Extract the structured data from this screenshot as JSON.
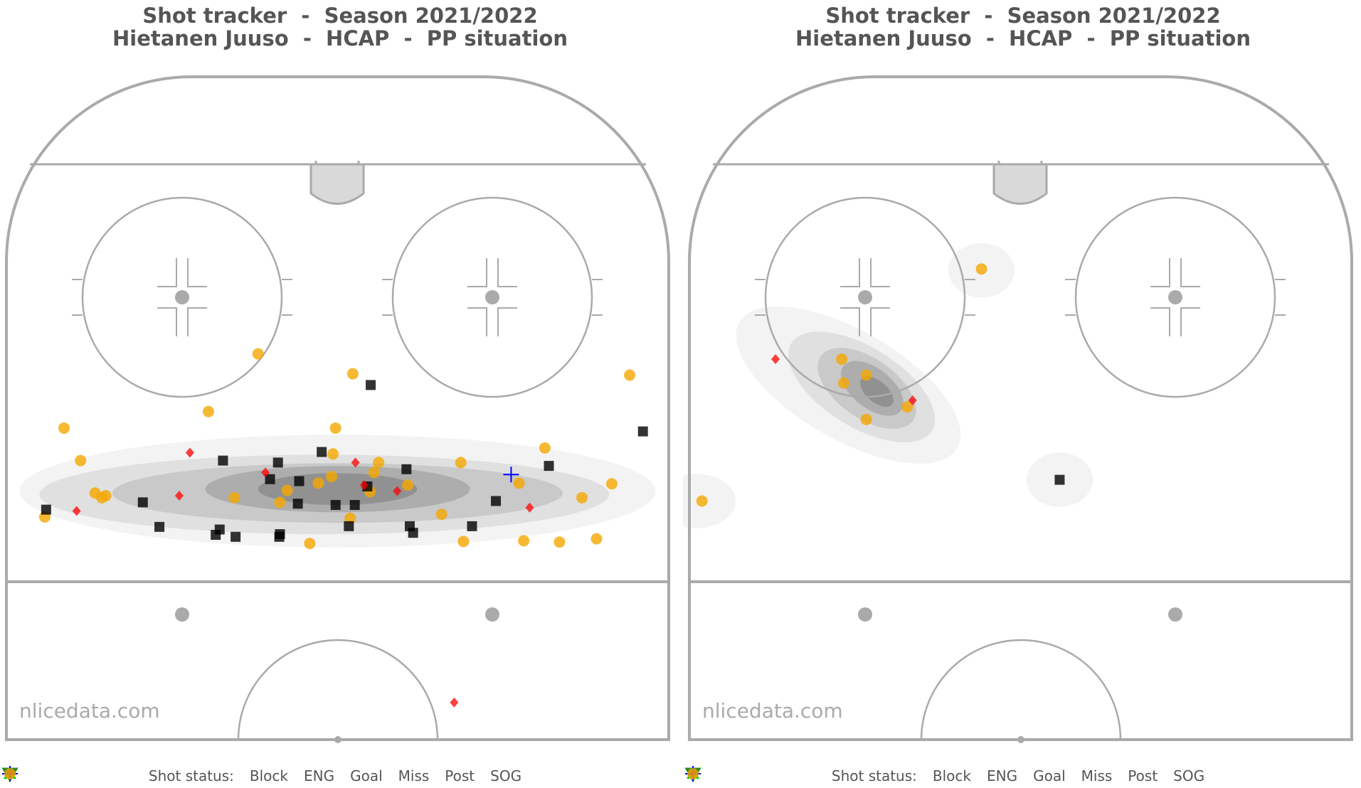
{
  "watermark": "nlicedata.com",
  "legend": {
    "label": "Shot status:",
    "items": [
      {
        "key": "block",
        "label": "Block",
        "color": "#000000",
        "marker": "square"
      },
      {
        "key": "eng",
        "label": "ENG",
        "color": "#228b22",
        "marker": "triangle-down-open"
      },
      {
        "key": "goal",
        "label": "Goal",
        "color": "#00cc00",
        "marker": "triangle-up"
      },
      {
        "key": "miss",
        "label": "Miss",
        "color": "#ff0000",
        "marker": "diamond"
      },
      {
        "key": "post",
        "label": "Post",
        "color": "#0000ff",
        "marker": "plus"
      },
      {
        "key": "sog",
        "label": "SOG",
        "color": "#f5a800",
        "marker": "circle"
      }
    ]
  },
  "chart_data": [
    {
      "type": "scatter",
      "title_line1": "Shot tracker  -  Season 2021/2022",
      "title_line2": "Hietanen Juuso  -  HCAP  -  PP situation",
      "density_overlay": true,
      "points": [
        {
          "x": 0.087,
          "y": 0.53,
          "s": "sog"
        },
        {
          "x": 0.112,
          "y": 0.579,
          "s": "sog"
        },
        {
          "x": 0.134,
          "y": 0.628,
          "s": "sog"
        },
        {
          "x": 0.144,
          "y": 0.635,
          "s": "sog"
        },
        {
          "x": 0.15,
          "y": 0.632,
          "s": "sog"
        },
        {
          "x": 0.058,
          "y": 0.664,
          "s": "sog"
        },
        {
          "x": 0.305,
          "y": 0.505,
          "s": "sog"
        },
        {
          "x": 0.38,
          "y": 0.418,
          "s": "sog"
        },
        {
          "x": 0.523,
          "y": 0.448,
          "s": "sog"
        },
        {
          "x": 0.497,
          "y": 0.53,
          "s": "sog"
        },
        {
          "x": 0.493,
          "y": 0.569,
          "s": "sog"
        },
        {
          "x": 0.491,
          "y": 0.603,
          "s": "sog"
        },
        {
          "x": 0.471,
          "y": 0.613,
          "s": "sog"
        },
        {
          "x": 0.424,
          "y": 0.624,
          "s": "sog"
        },
        {
          "x": 0.413,
          "y": 0.642,
          "s": "sog"
        },
        {
          "x": 0.344,
          "y": 0.635,
          "s": "sog"
        },
        {
          "x": 0.562,
          "y": 0.582,
          "s": "sog"
        },
        {
          "x": 0.555,
          "y": 0.597,
          "s": "sog"
        },
        {
          "x": 0.549,
          "y": 0.626,
          "s": "sog"
        },
        {
          "x": 0.606,
          "y": 0.616,
          "s": "sog"
        },
        {
          "x": 0.519,
          "y": 0.666,
          "s": "sog"
        },
        {
          "x": 0.458,
          "y": 0.704,
          "s": "sog"
        },
        {
          "x": 0.686,
          "y": 0.582,
          "s": "sog"
        },
        {
          "x": 0.657,
          "y": 0.66,
          "s": "sog"
        },
        {
          "x": 0.69,
          "y": 0.701,
          "s": "sog"
        },
        {
          "x": 0.774,
          "y": 0.613,
          "s": "sog"
        },
        {
          "x": 0.813,
          "y": 0.56,
          "s": "sog"
        },
        {
          "x": 0.781,
          "y": 0.7,
          "s": "sog"
        },
        {
          "x": 0.835,
          "y": 0.702,
          "s": "sog"
        },
        {
          "x": 0.869,
          "y": 0.635,
          "s": "sog"
        },
        {
          "x": 0.891,
          "y": 0.697,
          "s": "sog"
        },
        {
          "x": 0.914,
          "y": 0.614,
          "s": "sog"
        },
        {
          "x": 0.941,
          "y": 0.45,
          "s": "sog"
        },
        {
          "x": 0.55,
          "y": 0.465,
          "s": "block"
        },
        {
          "x": 0.961,
          "y": 0.535,
          "s": "block"
        },
        {
          "x": 0.327,
          "y": 0.579,
          "s": "block"
        },
        {
          "x": 0.41,
          "y": 0.582,
          "s": "block"
        },
        {
          "x": 0.476,
          "y": 0.566,
          "s": "block"
        },
        {
          "x": 0.398,
          "y": 0.607,
          "s": "block"
        },
        {
          "x": 0.442,
          "y": 0.61,
          "s": "block"
        },
        {
          "x": 0.604,
          "y": 0.592,
          "s": "block"
        },
        {
          "x": 0.819,
          "y": 0.587,
          "s": "block"
        },
        {
          "x": 0.545,
          "y": 0.618,
          "s": "block"
        },
        {
          "x": 0.739,
          "y": 0.64,
          "s": "block"
        },
        {
          "x": 0.206,
          "y": 0.642,
          "s": "block"
        },
        {
          "x": 0.44,
          "y": 0.644,
          "s": "block"
        },
        {
          "x": 0.497,
          "y": 0.646,
          "s": "block"
        },
        {
          "x": 0.526,
          "y": 0.646,
          "s": "block"
        },
        {
          "x": 0.06,
          "y": 0.653,
          "s": "block"
        },
        {
          "x": 0.231,
          "y": 0.679,
          "s": "block"
        },
        {
          "x": 0.316,
          "y": 0.691,
          "s": "block"
        },
        {
          "x": 0.413,
          "y": 0.69,
          "s": "block"
        },
        {
          "x": 0.517,
          "y": 0.678,
          "s": "block"
        },
        {
          "x": 0.609,
          "y": 0.678,
          "s": "block"
        },
        {
          "x": 0.614,
          "y": 0.688,
          "s": "block"
        },
        {
          "x": 0.703,
          "y": 0.678,
          "s": "block"
        },
        {
          "x": 0.346,
          "y": 0.694,
          "s": "block"
        },
        {
          "x": 0.412,
          "y": 0.694,
          "s": "block"
        },
        {
          "x": 0.322,
          "y": 0.683,
          "s": "block"
        },
        {
          "x": 0.277,
          "y": 0.567,
          "s": "miss"
        },
        {
          "x": 0.391,
          "y": 0.597,
          "s": "miss"
        },
        {
          "x": 0.527,
          "y": 0.582,
          "s": "miss"
        },
        {
          "x": 0.54,
          "y": 0.616,
          "s": "miss"
        },
        {
          "x": 0.59,
          "y": 0.625,
          "s": "miss"
        },
        {
          "x": 0.261,
          "y": 0.632,
          "s": "miss"
        },
        {
          "x": 0.106,
          "y": 0.655,
          "s": "miss"
        },
        {
          "x": 0.79,
          "y": 0.65,
          "s": "miss"
        },
        {
          "x": 0.676,
          "y": 0.944,
          "s": "miss"
        },
        {
          "x": 0.762,
          "y": 0.6,
          "s": "post"
        }
      ],
      "density": [
        {
          "cx": 0.5,
          "cy": 0.625,
          "rx": 0.48,
          "ry": 0.085,
          "level": 1
        },
        {
          "cx": 0.48,
          "cy": 0.63,
          "rx": 0.43,
          "ry": 0.06,
          "level": 2
        },
        {
          "cx": 0.5,
          "cy": 0.628,
          "rx": 0.34,
          "ry": 0.045,
          "level": 3
        },
        {
          "cx": 0.5,
          "cy": 0.622,
          "rx": 0.2,
          "ry": 0.035,
          "level": 4
        },
        {
          "cx": 0.5,
          "cy": 0.622,
          "rx": 0.12,
          "ry": 0.024,
          "level": 5
        }
      ]
    },
    {
      "type": "scatter",
      "title_line1": "Shot tracker  -  Season 2021/2022",
      "title_line2": "Hietanen Juuso  -  HCAP  -  PP situation",
      "density_overlay": true,
      "points": [
        {
          "x": 0.441,
          "y": 0.29,
          "s": "sog"
        },
        {
          "x": 0.23,
          "y": 0.426,
          "s": "sog"
        },
        {
          "x": 0.233,
          "y": 0.462,
          "s": "sog"
        },
        {
          "x": 0.267,
          "y": 0.45,
          "s": "sog"
        },
        {
          "x": 0.329,
          "y": 0.498,
          "s": "sog"
        },
        {
          "x": 0.267,
          "y": 0.517,
          "s": "sog"
        },
        {
          "x": 0.019,
          "y": 0.64,
          "s": "sog"
        },
        {
          "x": 0.13,
          "y": 0.426,
          "s": "miss"
        },
        {
          "x": 0.337,
          "y": 0.488,
          "s": "miss"
        },
        {
          "x": 0.559,
          "y": 0.608,
          "s": "block"
        }
      ],
      "density": [
        {
          "cx": 0.441,
          "cy": 0.292,
          "rx": 0.05,
          "ry": 0.041,
          "level": 1
        },
        {
          "cx": 0.559,
          "cy": 0.608,
          "rx": 0.05,
          "ry": 0.041,
          "level": 1
        },
        {
          "cx": 0.01,
          "cy": 0.64,
          "rx": 0.06,
          "ry": 0.041,
          "level": 1
        },
        {
          "cx": 0.24,
          "cy": 0.465,
          "rx": 0.19,
          "ry": 0.082,
          "level": 1,
          "rot": 30
        },
        {
          "cx": 0.26,
          "cy": 0.468,
          "rx": 0.125,
          "ry": 0.06,
          "level": 2,
          "rot": 32
        },
        {
          "cx": 0.268,
          "cy": 0.47,
          "rx": 0.085,
          "ry": 0.045,
          "level": 3,
          "rot": 35
        },
        {
          "cx": 0.276,
          "cy": 0.47,
          "rx": 0.055,
          "ry": 0.03,
          "level": 4,
          "rot": 38
        },
        {
          "cx": 0.283,
          "cy": 0.475,
          "rx": 0.03,
          "ry": 0.016,
          "level": 5,
          "rot": 40
        }
      ]
    }
  ]
}
